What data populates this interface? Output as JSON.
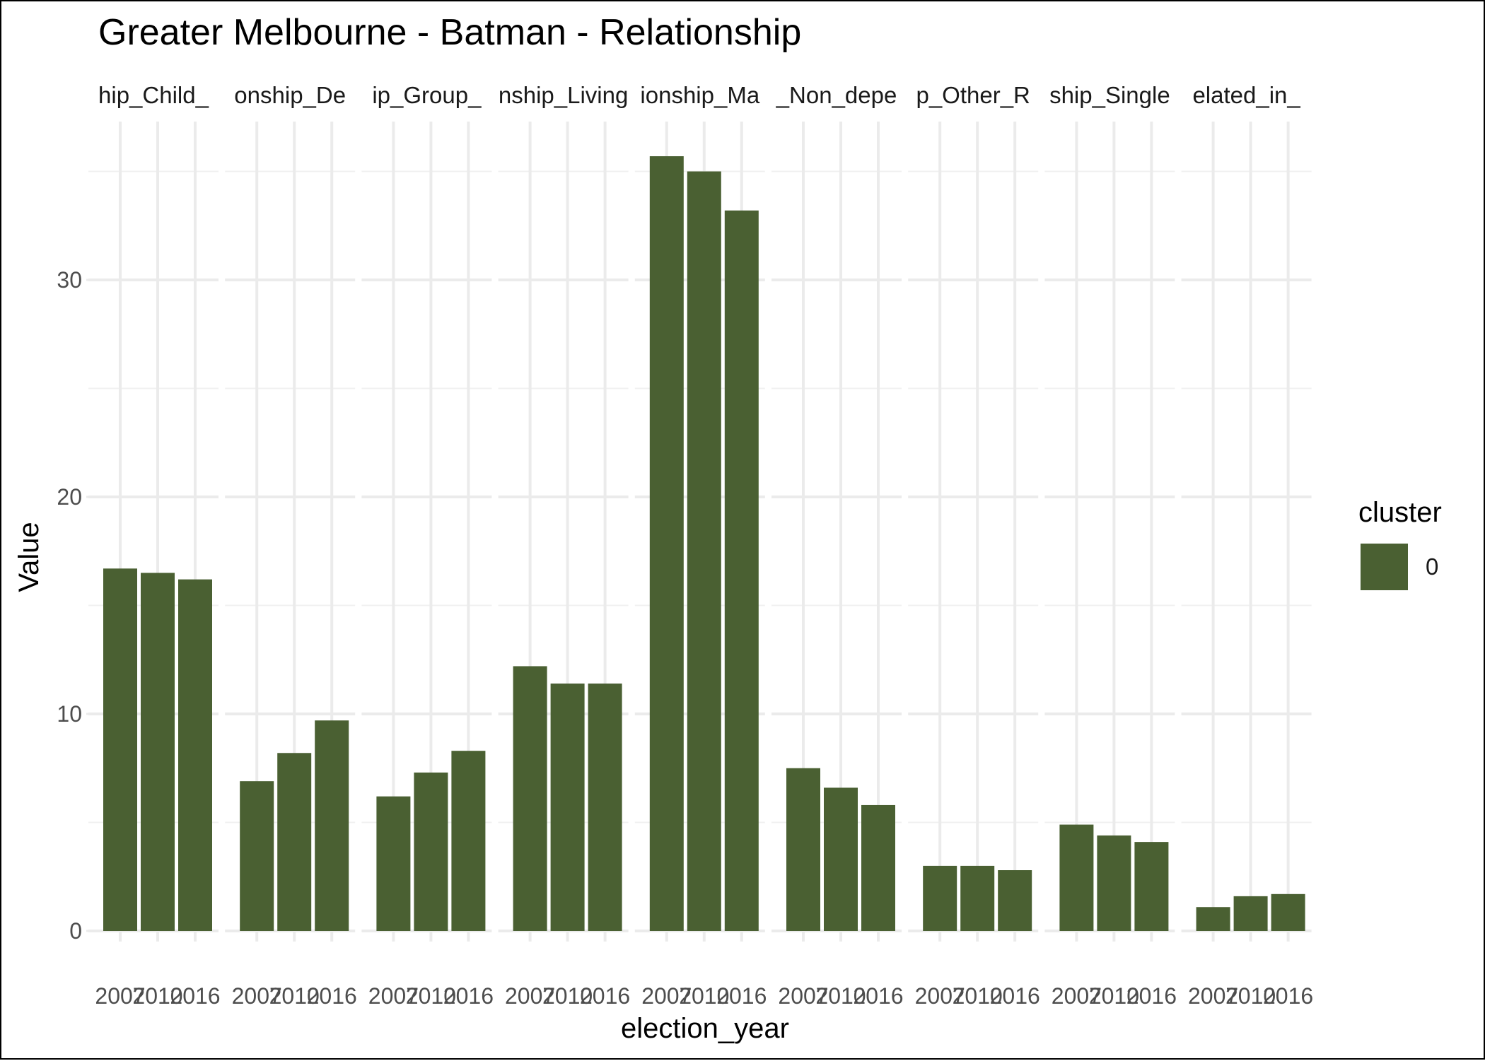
{
  "chart_data": {
    "type": "bar",
    "title": "Greater Melbourne - Batman - Relationship",
    "xlabel": "election_year",
    "ylabel": "Value",
    "ylim": [
      0,
      36
    ],
    "y_ticks": [
      0,
      10,
      20,
      30
    ],
    "grid": true,
    "legend": {
      "title": "cluster",
      "placement": "right",
      "entries": [
        {
          "label": "0",
          "color": "#4a6032"
        }
      ]
    },
    "bar_color": "#4a6032",
    "years": [
      "2007",
      "2010",
      "2016"
    ],
    "facets": [
      {
        "label": "hip_Child_",
        "values": [
          16.7,
          16.5,
          16.2
        ]
      },
      {
        "label": "onship_De",
        "values": [
          6.9,
          8.2,
          9.7
        ]
      },
      {
        "label": "ip_Group_",
        "values": [
          6.2,
          7.3,
          8.3
        ]
      },
      {
        "label": "nship_Living",
        "values": [
          12.2,
          11.4,
          11.4
        ]
      },
      {
        "label": "ionship_Ma",
        "values": [
          35.7,
          35.0,
          33.2
        ]
      },
      {
        "label": "_Non_depe",
        "values": [
          7.5,
          6.6,
          5.8
        ]
      },
      {
        "label": "p_Other_R",
        "values": [
          3.0,
          3.0,
          2.8
        ]
      },
      {
        "label": "ship_Single",
        "values": [
          4.9,
          4.4,
          4.1
        ]
      },
      {
        "label": "elated_in_",
        "values": [
          1.1,
          1.6,
          1.7
        ]
      }
    ]
  }
}
